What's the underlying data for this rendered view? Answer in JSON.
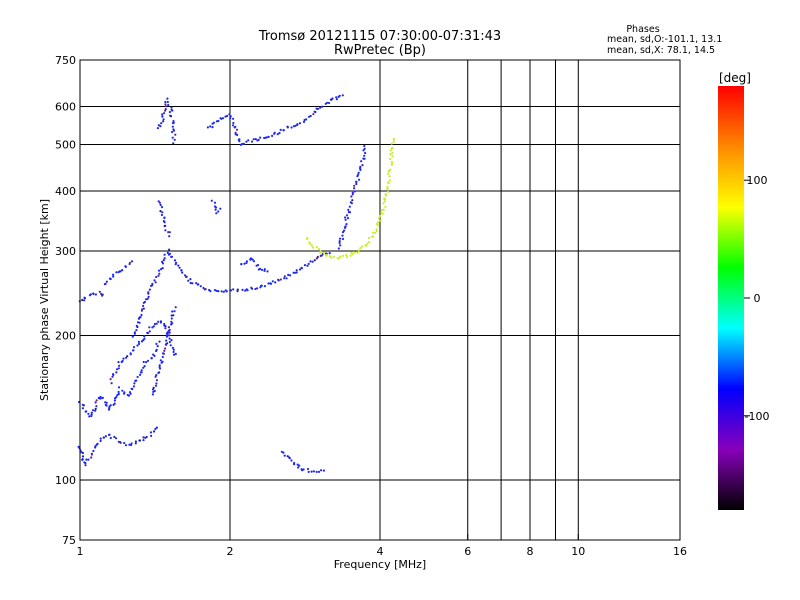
{
  "chart_data": {
    "type": "scatter",
    "title": "Tromsø 20121115 07:30:00-07:31:43",
    "subtitle": "RwPretec (Bp)",
    "xlabel": "Frequency [MHz]",
    "ylabel": "Stationary phase Virtual Height [km]",
    "x_scale": "log",
    "y_scale": "log",
    "xlim": [
      1,
      16
    ],
    "ylim": [
      75,
      750
    ],
    "x_ticks": [
      1,
      2,
      4,
      6,
      8,
      10,
      16
    ],
    "x_tick_labels": [
      "1",
      "2",
      "4",
      "6",
      "8",
      "10",
      "16"
    ],
    "x_gridlines": [
      2,
      4,
      6,
      7,
      8,
      9,
      10
    ],
    "y_ticks": [
      75,
      100,
      200,
      300,
      400,
      500,
      600,
      750
    ],
    "y_tick_labels": [
      "75",
      "100",
      "200",
      "300",
      "400",
      "500",
      "600",
      "750"
    ],
    "y_gridlines": [
      100,
      200,
      300,
      400,
      500,
      600
    ],
    "grid": true,
    "legend": {
      "heading": "Phases",
      "lines": [
        "mean, sd,O:-101.1, 13.1",
        "mean, sd,X:  78.1, 14.5"
      ],
      "placement": "top-right"
    },
    "colorbar": {
      "label": "[deg]",
      "range": [
        -180,
        180
      ],
      "ticks": [
        100,
        0,
        -100
      ],
      "tick_labels": [
        "100",
        "0",
        "-100"
      ],
      "placement": "right",
      "colors": [
        "#ff0000",
        "#ff8800",
        "#ffff00",
        "#00ff00",
        "#00ffff",
        "#0000ff",
        "#8800bb",
        "#000000"
      ]
    },
    "colors": {
      "o_mode": "#1e28f0",
      "x_mode": "#c8f01e",
      "frame": "#000000"
    },
    "series": [
      {
        "mode": "O",
        "color": "#1e28f0",
        "curves": [
          {
            "x": [
              1.0,
              1.02,
              1.05,
              1.1,
              1.15,
              1.2,
              1.25,
              1.3,
              1.35,
              1.4,
              1.44
            ],
            "y": [
              118,
              108,
              112,
              122,
              124,
              120,
              118,
              120,
              122,
              126,
              130
            ]
          },
          {
            "x": [
              1.0,
              1.05,
              1.1,
              1.15,
              1.2,
              1.25,
              1.3,
              1.35,
              1.4,
              1.44
            ],
            "y": [
              145,
              135,
              150,
              140,
              155,
              150,
              160,
              175,
              180,
              195
            ]
          },
          {
            "x": [
              1.15,
              1.2,
              1.25,
              1.3,
              1.35,
              1.4,
              1.45,
              1.5,
              1.55
            ],
            "y": [
              160,
              175,
              180,
              190,
              200,
              210,
              215,
              205,
              180
            ]
          },
          {
            "x": [
              1.28,
              1.32,
              1.36,
              1.4,
              1.44,
              1.48,
              1.5
            ],
            "y": [
              200,
              220,
              240,
              255,
              270,
              290,
              300
            ]
          },
          {
            "x": [
              1.4,
              1.44,
              1.48,
              1.52,
              1.55
            ],
            "y": [
              150,
              170,
              190,
              210,
              230
            ]
          },
          {
            "x": [
              1.44,
              1.46,
              1.48,
              1.5,
              1.52,
              1.55
            ],
            "y": [
              540,
              560,
              600,
              620,
              600,
              500
            ]
          },
          {
            "x": [
              1.44,
              1.46,
              1.48,
              1.5,
              1.52
            ],
            "y": [
              380,
              360,
              340,
              330,
              320
            ]
          },
          {
            "x": [
              1.5,
              1.55,
              1.6,
              1.65,
              1.7,
              1.8,
              1.9,
              2.0,
              2.2,
              2.4,
              2.6,
              2.8,
              3.0,
              3.2
            ],
            "y": [
              300,
              285,
              272,
              262,
              256,
              250,
              248,
              248,
              250,
              256,
              265,
              278,
              292,
              300
            ]
          },
          {
            "x": [
              1.12,
              1.18,
              1.22,
              1.25,
              1.28
            ],
            "y": [
              255,
              270,
              275,
              280,
              285
            ]
          },
          {
            "x": [
              1.0,
              1.03,
              1.06,
              1.1,
              1.12
            ],
            "y": [
              235,
              240,
              245,
              245,
              240
            ]
          },
          {
            "x": [
              3.3,
              3.35,
              3.4,
              3.45,
              3.5,
              3.55,
              3.6,
              3.65,
              3.7,
              3.75
            ],
            "y": [
              305,
              320,
              340,
              360,
              380,
              400,
              420,
              440,
              470,
              500
            ]
          },
          {
            "x": [
              1.8,
              1.9,
              2.0,
              2.1,
              2.2,
              2.4,
              2.6,
              2.8,
              3.0,
              3.2,
              3.4
            ],
            "y": [
              540,
              560,
              580,
              500,
              510,
              520,
              540,
              560,
              590,
              620,
              640
            ]
          },
          {
            "x": [
              1.85,
              1.88,
              1.92
            ],
            "y": [
              380,
              360,
              370
            ]
          },
          {
            "x": [
              2.1,
              2.2,
              2.3,
              2.4
            ],
            "y": [
              280,
              290,
              275,
              270
            ]
          },
          {
            "x": [
              2.55,
              2.6,
              2.8,
              3.1
            ],
            "y": [
              115,
              112,
              105,
              104
            ]
          }
        ]
      },
      {
        "mode": "X",
        "color": "#c8f01e",
        "curves": [
          {
            "x": [
              2.85,
              2.95,
              3.05,
              3.15,
              3.3,
              3.45,
              3.6,
              3.75,
              3.9,
              4.05,
              4.15,
              4.22,
              4.25
            ],
            "y": [
              320,
              306,
              297,
              293,
              291,
              293,
              299,
              310,
              328,
              360,
              410,
              470,
              520
            ]
          }
        ]
      }
    ]
  }
}
